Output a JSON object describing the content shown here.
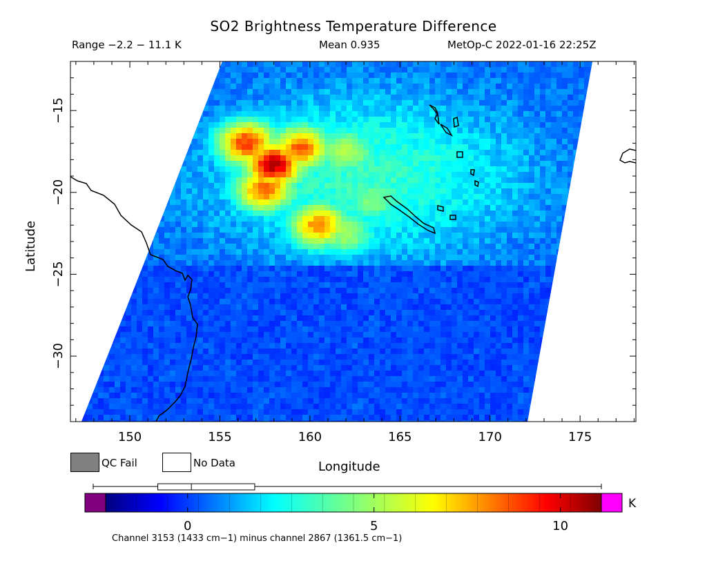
{
  "header": {
    "title": "SO2 Brightness Temperature Difference",
    "range": "Range −2.2 − 11.1 K",
    "mean": "Mean 0.935",
    "satellite_time": "MetOp-C 2022-01-16 22:25Z"
  },
  "axes": {
    "xlabel": "Longitude",
    "ylabel": "Latitude",
    "lon_ticks": [
      {
        "value": 150,
        "label": "150"
      },
      {
        "value": 155,
        "label": "155"
      },
      {
        "value": 160,
        "label": "160"
      },
      {
        "value": 165,
        "label": "165"
      },
      {
        "value": 170,
        "label": "170"
      },
      {
        "value": 175,
        "label": "175"
      }
    ],
    "lat_ticks": [
      {
        "value": -15,
        "label": "−15"
      },
      {
        "value": -20,
        "label": "−20"
      },
      {
        "value": -25,
        "label": "−25"
      },
      {
        "value": -30,
        "label": "−30"
      }
    ],
    "lon_range": [
      146.7,
      178.1
    ],
    "lat_range": [
      -34.0,
      -12.0
    ]
  },
  "legend": {
    "qc_fail": "QC Fail",
    "no_data": "No Data",
    "qc_fail_color": "#808080",
    "no_data_color": "#ffffff"
  },
  "colorbar": {
    "unit": "K",
    "caption": "Channel 3153 (1433 cm−1) minus channel 2867 (1361.5 cm−1)",
    "value_range": [
      -2.2,
      11.1
    ],
    "ticks": [
      {
        "value": 0,
        "label": "0"
      },
      {
        "value": 5,
        "label": "5"
      },
      {
        "value": 10,
        "label": "10"
      }
    ],
    "under_color": "#800080",
    "over_color": "#ff00ff",
    "boxplot": {
      "min": -2.2,
      "q1": -0.8,
      "median": 0.1,
      "q3": 1.8,
      "max": 11.1
    }
  },
  "map": {
    "plume": [
      {
        "lon": 158.0,
        "lat": -18.3,
        "value": 10.5
      },
      {
        "lon": 156.5,
        "lat": -17.0,
        "value": 9.0
      },
      {
        "lon": 159.5,
        "lat": -17.3,
        "value": 8.5
      },
      {
        "lon": 157.5,
        "lat": -19.8,
        "value": 8.5
      },
      {
        "lon": 160.5,
        "lat": -22.0,
        "value": 8.0
      },
      {
        "lon": 162.0,
        "lat": -17.5,
        "value": 5.5
      },
      {
        "lon": 163.5,
        "lat": -20.5,
        "value": 4.5
      },
      {
        "lon": 162.0,
        "lat": -22.5,
        "value": 5.0
      }
    ]
  }
}
